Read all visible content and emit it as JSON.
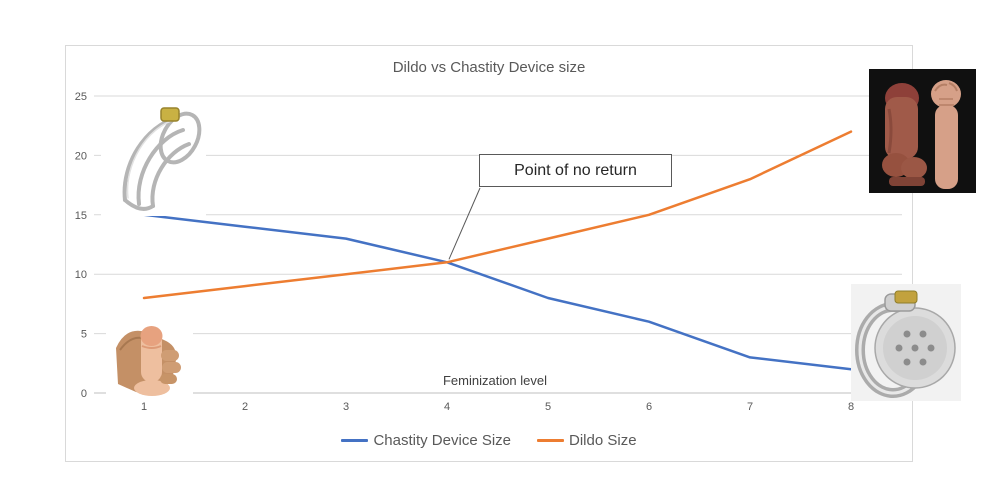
{
  "chart_data": {
    "type": "line",
    "title": "Dildo vs Chastity Device size",
    "xlabel": "Feminization level",
    "ylabel": "",
    "categories": [
      "1",
      "2",
      "3",
      "4",
      "5",
      "6",
      "7",
      "8"
    ],
    "series": [
      {
        "name": "Chastity Device Size",
        "color": "#4472C4",
        "values": [
          15,
          14,
          13,
          11,
          8,
          6,
          3,
          2
        ]
      },
      {
        "name": "Dildo Size",
        "color": "#ED7D31",
        "values": [
          8,
          9,
          10,
          11,
          13,
          15,
          18,
          22
        ]
      }
    ],
    "ylim": [
      0,
      25
    ],
    "y_ticks": [
      0,
      5,
      10,
      15,
      20,
      25
    ],
    "grid": "horizontal-only",
    "legend_position": "bottom",
    "annotation": {
      "text": "Point of no return",
      "target_category": "4",
      "target_value": 11
    }
  },
  "colors": {
    "gridline": "#D9D9D9",
    "axis_line": "#BFBFBF",
    "tick_text": "#595959",
    "title_text": "#595959",
    "annotation_border": "#595959",
    "leader_line": "#595959"
  },
  "photos": [
    {
      "name": "clear-chastity-cage-photo",
      "position": "top-left",
      "depicts": "transparent chastity cage with brass lock"
    },
    {
      "name": "giant-dildo-forearm-photo",
      "position": "top-right",
      "depicts": "oversized toy beside raised forearm and fist on black background"
    },
    {
      "name": "hand-holding-small-dildo-photo",
      "position": "bottom-left",
      "depicts": "hand holding a small flesh-tone toy"
    },
    {
      "name": "steel-chastity-cage-photo",
      "position": "bottom-right",
      "depicts": "small polished steel chastity device with vent holes and brass lock"
    }
  ]
}
